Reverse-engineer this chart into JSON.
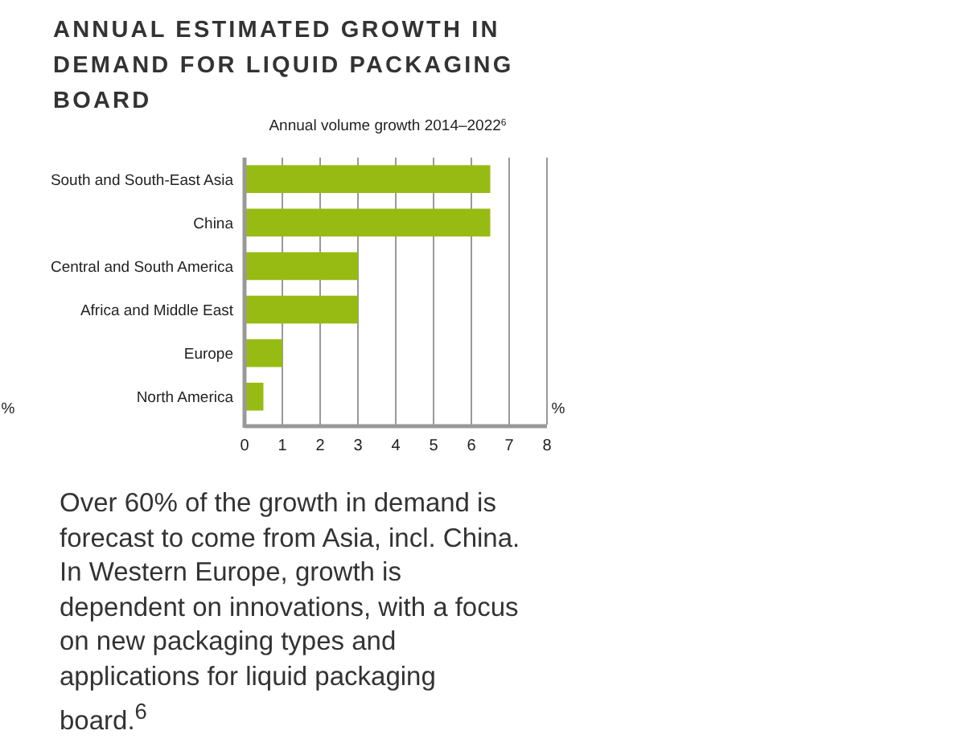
{
  "chart_data": {
    "type": "bar",
    "orientation": "horizontal",
    "title": "ANNUAL ESTIMATED GROWTH IN DEMAND FOR LIQUID PACKAGING BOARD",
    "subtitle": "Annual volume growth 2014–2022$^{6}$",
    "xlabel": "%",
    "categories": [
      "South and South-East Asia",
      "China",
      "Central and South America",
      "Africa and Middle East",
      "Europe",
      "North America"
    ],
    "values": [
      6.5,
      6.5,
      3,
      3,
      1,
      0.5
    ],
    "color": "#97bb12",
    "xlim": [
      0,
      8
    ],
    "xticks": [
      0,
      1,
      2,
      3,
      4,
      5,
      6,
      7,
      8
    ],
    "grid": "x",
    "annotations": [
      "%",
      "Over 60% of the growth in demand is forecast to come from Asia, incl. China. In Western Europe, growth is dependent on innovations, with a focus on new packaging types and applications for liquid packaging board.$^{6}$"
    ]
  }
}
